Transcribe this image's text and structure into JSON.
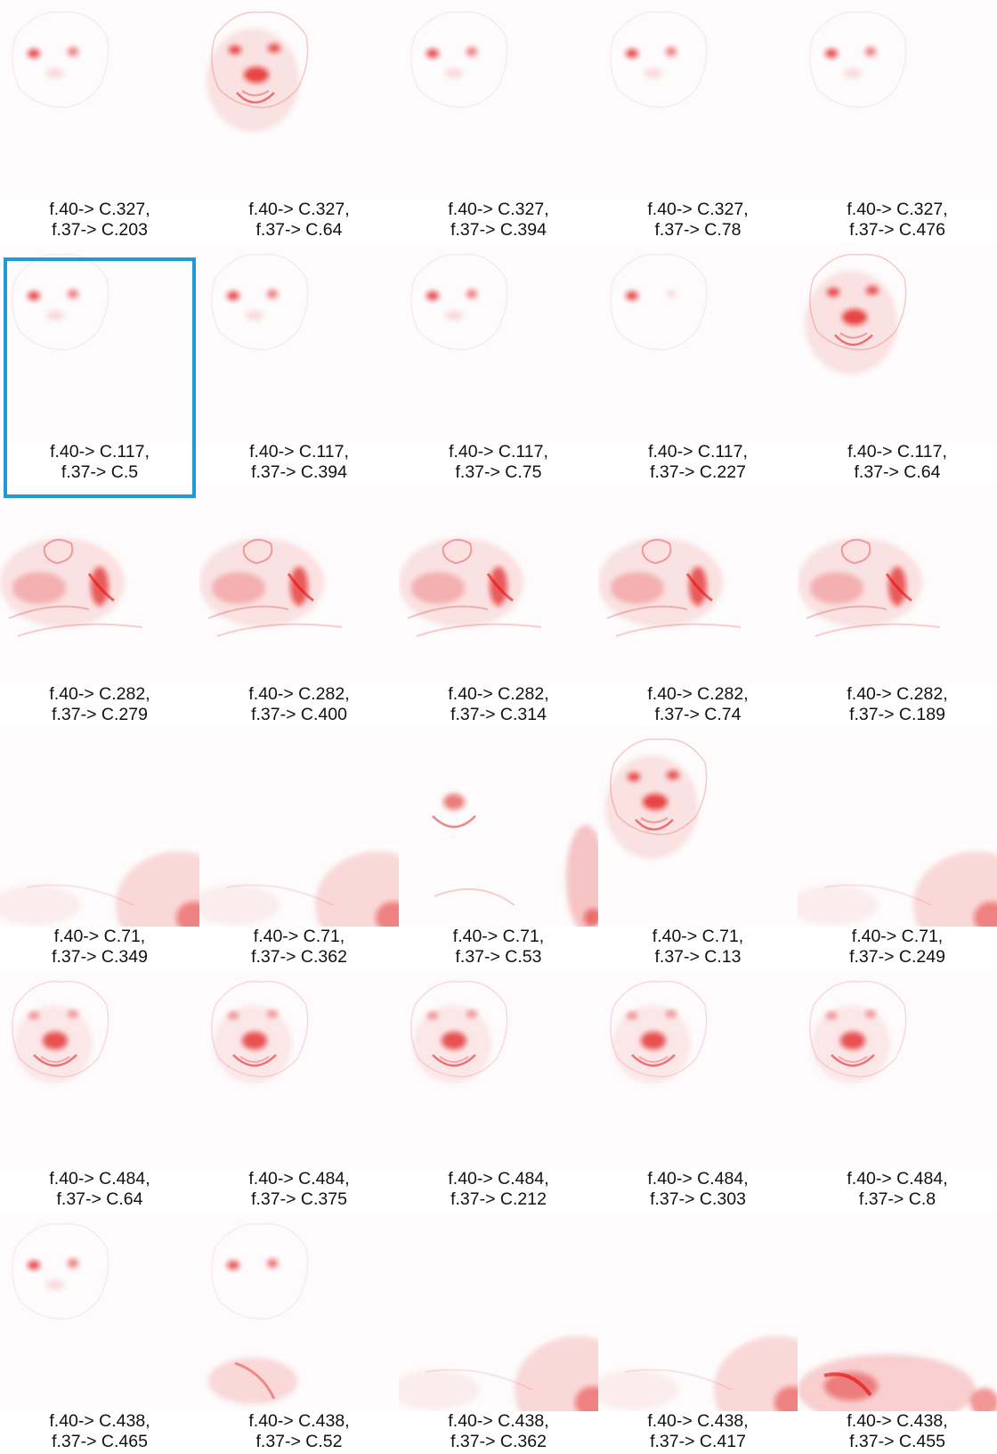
{
  "highlight_index": 5,
  "highlight_color": "#1f9ad6",
  "heat_color": "#e01010",
  "thumbnails": [
    {
      "line1": "f.40-> C.327,",
      "line2": "f.37-> C.203",
      "pattern": "eyes-faint"
    },
    {
      "line1": "f.40-> C.327,",
      "line2": "f.37-> C.64",
      "pattern": "full-face"
    },
    {
      "line1": "f.40-> C.327,",
      "line2": "f.37-> C.394",
      "pattern": "eyes-faint"
    },
    {
      "line1": "f.40-> C.327,",
      "line2": "f.37-> C.78",
      "pattern": "eyes-faint"
    },
    {
      "line1": "f.40-> C.327,",
      "line2": "f.37-> C.476",
      "pattern": "eyes-faint"
    },
    {
      "line1": "f.40-> C.117,",
      "line2": "f.37-> C.5",
      "pattern": "eyes-faint"
    },
    {
      "line1": "f.40-> C.117,",
      "line2": "f.37-> C.394",
      "pattern": "eyes-faint"
    },
    {
      "line1": "f.40-> C.117,",
      "line2": "f.37-> C.75",
      "pattern": "eyes-faint"
    },
    {
      "line1": "f.40-> C.117,",
      "line2": "f.37-> C.227",
      "pattern": "eye-left"
    },
    {
      "line1": "f.40-> C.117,",
      "line2": "f.37-> C.64",
      "pattern": "full-face"
    },
    {
      "line1": "f.40-> C.282,",
      "line2": "f.37-> C.279",
      "pattern": "body"
    },
    {
      "line1": "f.40-> C.282,",
      "line2": "f.37-> C.400",
      "pattern": "body"
    },
    {
      "line1": "f.40-> C.282,",
      "line2": "f.37-> C.314",
      "pattern": "body"
    },
    {
      "line1": "f.40-> C.282,",
      "line2": "f.37-> C.74",
      "pattern": "body"
    },
    {
      "line1": "f.40-> C.282,",
      "line2": "f.37-> C.189",
      "pattern": "body"
    },
    {
      "line1": "f.40-> C.71,",
      "line2": "f.37-> C.349",
      "pattern": "corner"
    },
    {
      "line1": "f.40-> C.71,",
      "line2": "f.37-> C.362",
      "pattern": "corner"
    },
    {
      "line1": "f.40-> C.71,",
      "line2": "f.37-> C.53",
      "pattern": "mouth-corner"
    },
    {
      "line1": "f.40-> C.71,",
      "line2": "f.37-> C.13",
      "pattern": "full-face"
    },
    {
      "line1": "f.40-> C.71,",
      "line2": "f.37-> C.249",
      "pattern": "corner"
    },
    {
      "line1": "f.40-> C.484,",
      "line2": "f.37-> C.64",
      "pattern": "nose-mouth"
    },
    {
      "line1": "f.40-> C.484,",
      "line2": "f.37-> C.375",
      "pattern": "nose-mouth"
    },
    {
      "line1": "f.40-> C.484,",
      "line2": "f.37-> C.212",
      "pattern": "nose-mouth"
    },
    {
      "line1": "f.40-> C.484,",
      "line2": "f.37-> C.303",
      "pattern": "nose-mouth"
    },
    {
      "line1": "f.40-> C.484,",
      "line2": "f.37-> C.8",
      "pattern": "nose-mouth"
    },
    {
      "line1": "f.40-> C.438,",
      "line2": "f.37-> C.465",
      "pattern": "eyes-faint"
    },
    {
      "line1": "f.40-> C.438,",
      "line2": "f.37-> C.52",
      "pattern": "eyes-bottom"
    },
    {
      "line1": "f.40-> C.438,",
      "line2": "f.37-> C.362",
      "pattern": "corner"
    },
    {
      "line1": "f.40-> C.438,",
      "line2": "f.37-> C.417",
      "pattern": "corner"
    },
    {
      "line1": "f.40-> C.438,",
      "line2": "f.37-> C.455",
      "pattern": "bottom-strong"
    }
  ]
}
